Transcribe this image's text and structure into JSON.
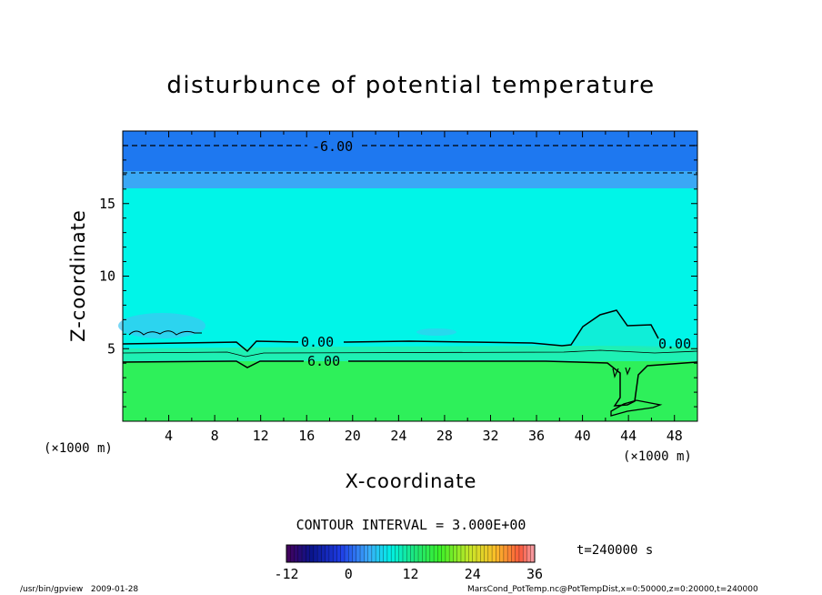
{
  "chart_data": {
    "type": "heatmap",
    "title": "disturbunce of potential temperature",
    "xlabel": "X-coordinate",
    "ylabel": "Z-coordinate",
    "x_unit": "(×1000 m)",
    "z_unit": "(×1000 m)",
    "xlim": [
      0,
      50
    ],
    "zlim": [
      0,
      20
    ],
    "x_ticks": [
      "4",
      "8",
      "12",
      "16",
      "20",
      "24",
      "28",
      "32",
      "36",
      "40",
      "44",
      "48"
    ],
    "z_ticks": [
      "5",
      "10",
      "15"
    ],
    "contour_interval_text": "CONTOUR INTERVAL = 3.000E+00",
    "contour_labels": [
      {
        "text": "-6.00",
        "x": 19.2,
        "z": 19.0
      },
      {
        "text": "0.00",
        "x": 17.0,
        "z": 5.4
      },
      {
        "text": "0.00",
        "x": 47.6,
        "z": 5.3
      },
      {
        "text": "6.00",
        "x": 17.0,
        "z": 4.2
      }
    ],
    "colorbar": {
      "min": -12,
      "max": 36,
      "ticks": [
        "-12",
        "0",
        "12",
        "24",
        "36"
      ]
    },
    "time_label": "t=240000 s",
    "grid": false
  },
  "footer": {
    "left": "/usr/bin/gpview   2009-01-28",
    "right": "MarsCond_PotTemp.nc@PotTempDist,x=0:50000,z=0:20000,t=240000"
  },
  "colors": {
    "upper_band": "#1e78f0",
    "middle_band": "#3aa8f5",
    "cyan_field": "#00f5e8",
    "green_field": "#2ef05a"
  }
}
